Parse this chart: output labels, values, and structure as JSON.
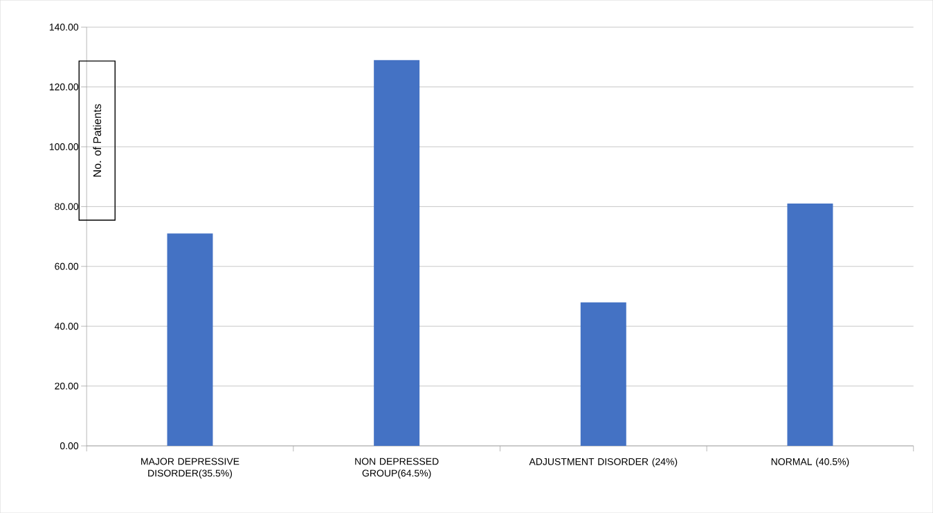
{
  "chart_data": {
    "type": "bar",
    "ylabel": "No. of Patients",
    "categories": [
      "MAJOR DEPRESSIVE DISORDER(35.5%)",
      "NON DEPRESSED GROUP(64.5%)",
      "ADJUSTMENT DISORDER (24%)",
      "NORMAL (40.5%)"
    ],
    "values": [
      71,
      129,
      48,
      81
    ],
    "color": "#4472c4",
    "ylim": [
      0,
      140
    ],
    "yticks": [
      {
        "value": 0,
        "label": "0.00"
      },
      {
        "value": 20,
        "label": "20.00"
      },
      {
        "value": 40,
        "label": "40.00"
      },
      {
        "value": 60,
        "label": "60.00"
      },
      {
        "value": 80,
        "label": "80.00"
      },
      {
        "value": 100,
        "label": "100.00"
      },
      {
        "value": 120,
        "label": "120.00"
      },
      {
        "value": 140,
        "label": "140.00"
      }
    ],
    "grid": "y"
  }
}
